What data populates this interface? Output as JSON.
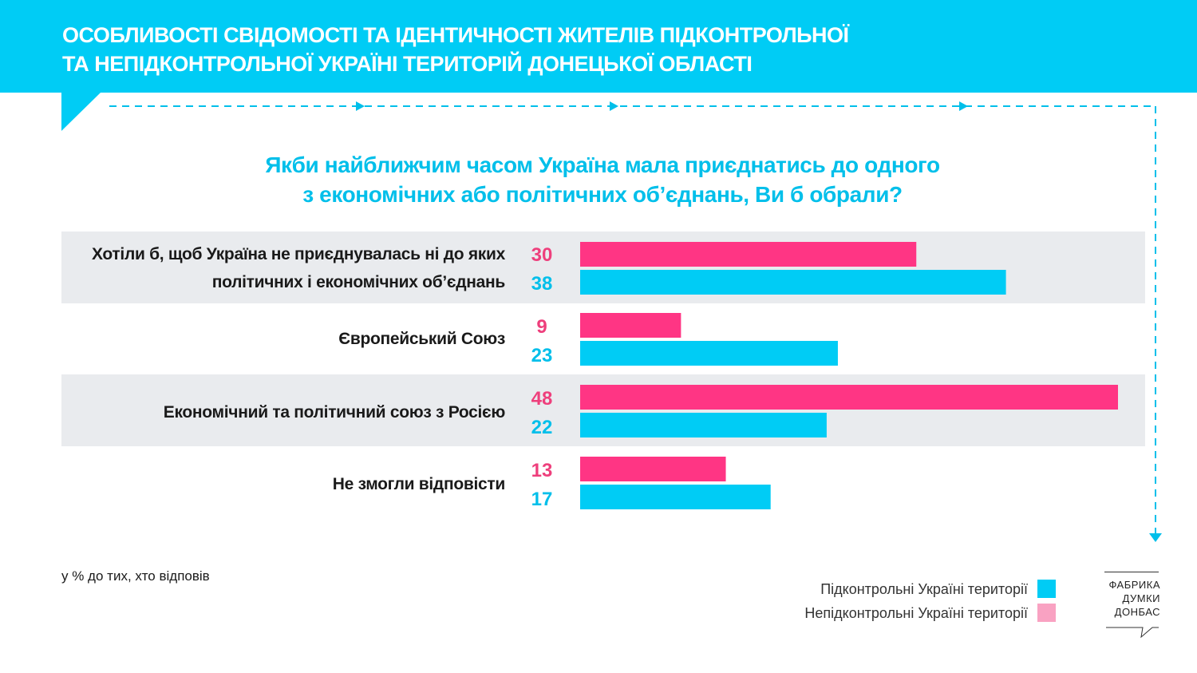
{
  "header": {
    "title_lines": [
      "ОСОБЛИВОСТІ СВІДОМОСТІ ТА ІДЕНТИЧНОСТІ ЖИТЕЛІВ ПІДКОНТРОЛЬНОЇ",
      "ТА НЕПІДКОНТРОЛЬНОЇ УКРАЇНІ ТЕРИТОРІЙ ДОНЕЦЬКОЇ ОБЛАСТІ"
    ]
  },
  "question": {
    "lines": [
      "Якби найближчим часом Україна мала приєднатись до одного",
      "з економічних або політичних об’єднань, Ви б обрали?"
    ]
  },
  "colors": {
    "header": "#00CCF5",
    "cyan": "#00CCF5",
    "pink": "#FF3584",
    "pink_text": "#EE3F7C",
    "legend_pink": "#F9A2C2",
    "row_shade": "#E9EBEE"
  },
  "chart_data": {
    "type": "bar",
    "orientation": "horizontal",
    "categories": [
      [
        "Хотіли б, щоб Україна не приєднувалась ні до яких",
        "політичних і економічних об’єднань"
      ],
      [
        "Європейський Союз"
      ],
      [
        "Економічний та політичний союз з Росією"
      ],
      [
        "Не змогли відповісти"
      ]
    ],
    "series": [
      {
        "name": "Непідконтрольні Україні території",
        "color": "#FF3584",
        "values": [
          30,
          9,
          48,
          13
        ]
      },
      {
        "name": "Підконтрольні Україні території",
        "color": "#00CCF5",
        "values": [
          38,
          23,
          22,
          17
        ]
      }
    ],
    "xlim": [
      0,
      48
    ],
    "grid": false,
    "legend_position": "bottom-right"
  },
  "note": "у % до тих, хто відповів",
  "legend": [
    {
      "label": "Підконтрольні Україні території",
      "color": "#00CCF5"
    },
    {
      "label": "Непідконтрольні Україні території",
      "color": "#F9A2C2"
    }
  ],
  "logo": {
    "lines": [
      "ФАБРИКА",
      "ДУМКИ",
      "ДОНБАС"
    ]
  }
}
